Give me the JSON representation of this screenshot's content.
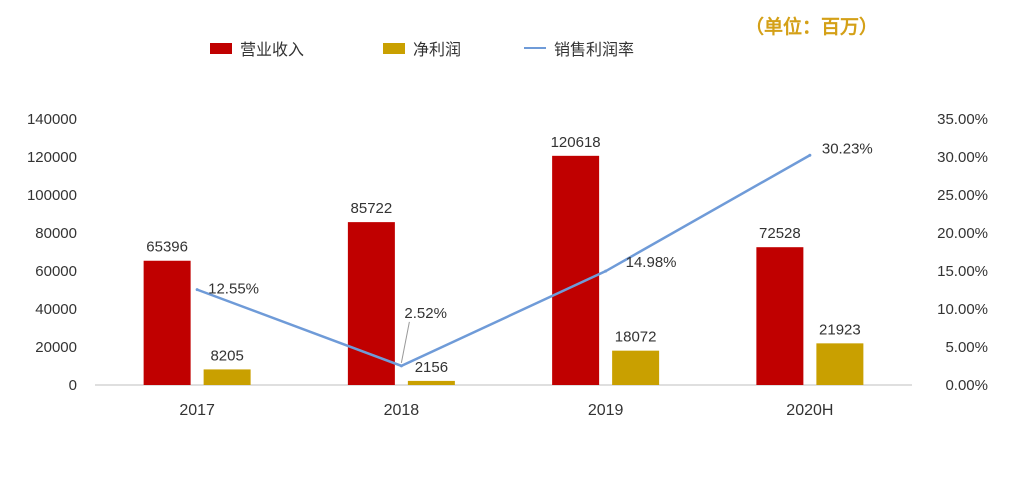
{
  "unit_note": "（单位：百万）",
  "legend": {
    "revenue": "营业收入",
    "profit": "净利润",
    "margin": "销售利润率"
  },
  "colors": {
    "revenue": "#c00000",
    "profit": "#c9a000",
    "margin": "#6f9bd8",
    "axis": "#bfbfbf",
    "text": "#333333"
  },
  "chart_data": {
    "type": "bar",
    "categories": [
      "2017",
      "2018",
      "2019",
      "2020H"
    ],
    "series": [
      {
        "name": "营业收入",
        "type": "bar",
        "axis": "left",
        "values": [
          65396,
          85722,
          120618,
          72528
        ],
        "labels": [
          "65396",
          "85722",
          "120618",
          "72528"
        ]
      },
      {
        "name": "净利润",
        "type": "bar",
        "axis": "left",
        "values": [
          8205,
          2156,
          18072,
          21923
        ],
        "labels": [
          "8205",
          "2156",
          "18072",
          "21923"
        ]
      },
      {
        "name": "销售利润率",
        "type": "line",
        "axis": "right",
        "values": [
          12.55,
          2.52,
          14.98,
          30.23
        ],
        "labels": [
          "12.55%",
          "2.52%",
          "14.98%",
          "30.23%"
        ]
      }
    ],
    "y_left": {
      "min": 0,
      "max": 140000,
      "ticks": [
        "0",
        "20000",
        "40000",
        "60000",
        "80000",
        "100000",
        "120000",
        "140000"
      ]
    },
    "y_right": {
      "min": 0,
      "max": 35,
      "ticks": [
        "0.00%",
        "5.00%",
        "10.00%",
        "15.00%",
        "20.00%",
        "25.00%",
        "30.00%",
        "35.00%"
      ]
    },
    "grid": false,
    "legend_position": "top"
  }
}
